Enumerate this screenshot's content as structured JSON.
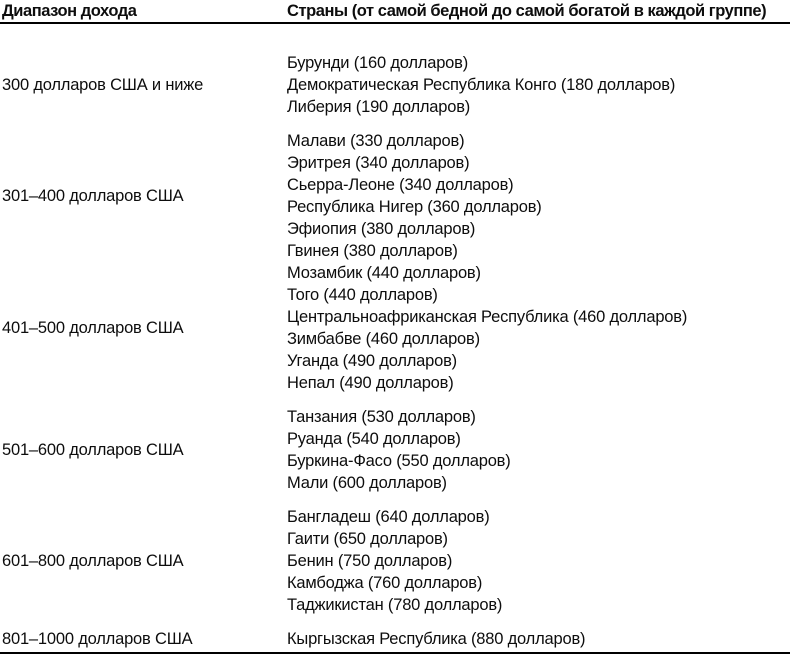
{
  "table": {
    "columns": [
      {
        "label": "Диапазон дохода"
      },
      {
        "label": "Страны (от самой бедной до самой богатой в каждой группе)"
      }
    ],
    "groups": [
      {
        "range": "300 долларов США и ниже",
        "countries": [
          "Бурунди (160 долларов)",
          "Демократическая Республика Конго (180 долларов)",
          "Либерия (190 долларов)"
        ]
      },
      {
        "range": "301–400 долларов США",
        "countries": [
          "Малави (330 долларов)",
          "Эритрея (340 долларов)",
          "Сьерра-Леоне (340 долларов)",
          "Республика Нигер (360 долларов)",
          "Эфиопия (380 долларов)",
          "Гвинея (380 долларов)"
        ]
      },
      {
        "range": "401–500 долларов США",
        "countries": [
          "Мозамбик (440 долларов)",
          "Того (440 долларов)",
          "Центральноафриканская Республика (460 долларов)",
          "Зимбабве (460 долларов)",
          "Уганда (490 долларов)",
          "Непал (490 долларов)"
        ]
      },
      {
        "range": "501–600 долларов США",
        "countries": [
          "Танзания (530 долларов)",
          "Руанда (540 долларов)",
          "Буркина-Фасо (550 долларов)",
          "Мали (600 долларов)"
        ]
      },
      {
        "range": "601–800 долларов США",
        "countries": [
          "Бангладеш (640 долларов)",
          "Гаити (650 долларов)",
          "Бенин (750 долларов)",
          "Камбоджа (760 долларов)",
          "Таджикистан (780 долларов)"
        ]
      },
      {
        "range": "801–1000 долларов США",
        "countries": [
          "Кыргызская Республика (880 долларов)"
        ]
      }
    ],
    "colors": {
      "text": "#0d0d0d",
      "rule": "#000000",
      "background": "#ffffff"
    }
  }
}
